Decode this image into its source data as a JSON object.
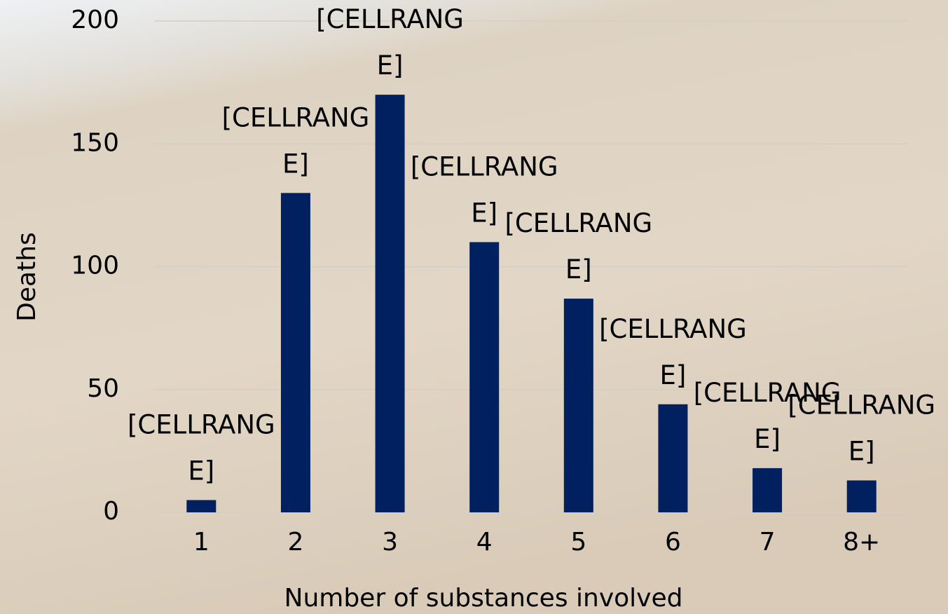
{
  "chart_data": {
    "type": "bar",
    "x_label": "Number of substances involved",
    "y_label": "Deaths",
    "categories": [
      "1",
      "2",
      "3",
      "4",
      "5",
      "6",
      "7",
      "8+"
    ],
    "values": [
      5,
      130,
      170,
      110,
      87,
      44,
      18,
      13
    ],
    "value_labels": [
      "[CELLRANGE]",
      "[CELLRANGE]",
      "[CELLRANGE]",
      "[CELLRANGE]",
      "[CELLRANGE]",
      "[CELLRANGE]",
      "[CELLRANGE]",
      "[CELLRANGE]"
    ],
    "color": "#002060",
    "ylim": [
      0,
      200
    ],
    "yticks": [
      0,
      50,
      100,
      150,
      200
    ],
    "grid": true
  }
}
